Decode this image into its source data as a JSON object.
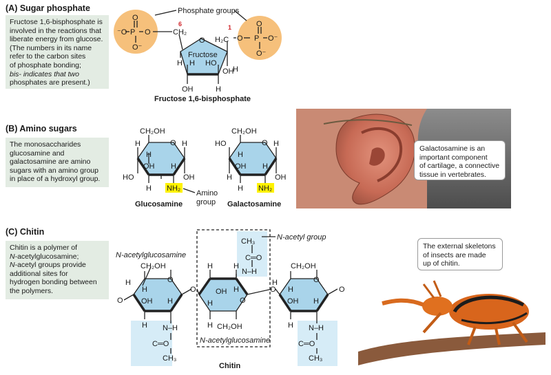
{
  "sectionA": {
    "title": "(A)  Sugar phosphate",
    "note": "Fructose 1,6-bisphosphate is involved in the reactions that liberate energy from glucose. (The numbers in its name refer to the carbon sites of phosphate bonding; bis- indicates that two phosphates are present.)",
    "note_lines": [
      "Fructose 1,6-bisphosphate is",
      "involved in the reactions that",
      "liberate energy from glucose.",
      "(The numbers in its name",
      "refer to the carbon sites",
      "of phosphate bonding;",
      "bis- indicates that two",
      "phosphates are present.)"
    ],
    "phosphate_label": "Phosphate groups",
    "ring_label": "Fructose",
    "num6": "6",
    "num1": "1",
    "caption": "Fructose 1,6-bisphosphate"
  },
  "sectionB": {
    "title": "(B)  Amino sugars",
    "note_lines": [
      "The monosaccharides",
      "glucosamine and",
      "galactosamine are amino",
      "sugars with an amino group",
      "in place of a hydroxyl group."
    ],
    "amino_label_1": "Amino",
    "amino_label_2": "group",
    "caption1": "Glucosamine",
    "caption2": "Galactosamine",
    "callout_lines": [
      "Galactosamine is an",
      "important component",
      "of cartilage, a connective",
      "tissue in vertebrates."
    ]
  },
  "sectionC": {
    "title": "(C)  Chitin",
    "note_lines": [
      "Chitin is a polymer of",
      "N-acetylglucosamine;",
      "N-acetyl groups provide",
      "additional sites for",
      "hydrogen bonding between",
      "the polymers."
    ],
    "label_nag_top": "N-acetylglucosamine",
    "label_acetyl": "N-acetyl group",
    "label_nag_bottom": "N-acetylglucosamine",
    "caption": "Chitin",
    "callout_lines": [
      "The external skeletons",
      "of insects are made",
      "up of chitin."
    ]
  },
  "chem": {
    "ch2oh": "CH₂OH",
    "nh2": "NH₂",
    "oh": "OH",
    "ho": "HO",
    "h": "H",
    "o": "O",
    "p": "P",
    "ch3": "CH₃",
    "nh": "N–H",
    "co": "C═O",
    "h2c": "H₂C",
    "ch2": "CH₂"
  },
  "colors": {
    "ring_fill": "#a9d4ea",
    "phosphate_fill": "#f6c07b",
    "note_bg": "#e3ece3",
    "nh2_highlight": "#fff200",
    "acetyl_box": "#d6ecf7",
    "number_red": "#d0252a"
  }
}
